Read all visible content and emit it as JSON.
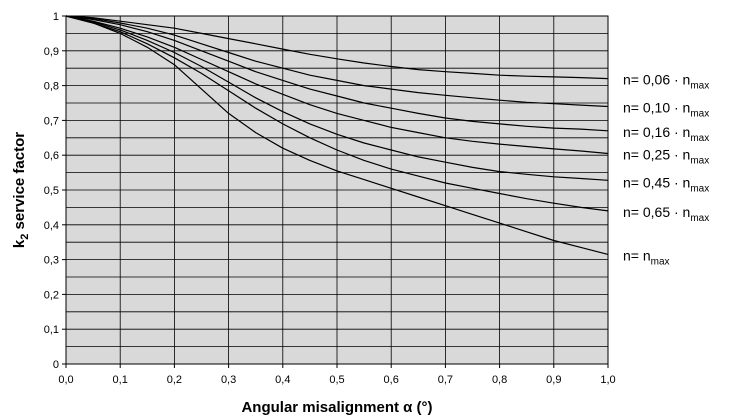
{
  "chart_data": {
    "type": "line",
    "title": "",
    "xlabel": "Angular misalignment α (°)",
    "ylabel": {
      "main": "k",
      "sub": "2",
      "rest": " service factor"
    },
    "xlim": [
      0,
      1.0
    ],
    "ylim": [
      0,
      1.0
    ],
    "x_ticks": [
      "0,0",
      "0,1",
      "0,2",
      "0,3",
      "0,4",
      "0,5",
      "0,6",
      "0,7",
      "0,8",
      "0,9",
      "1,0"
    ],
    "y_ticks": [
      "0",
      "0,1",
      "0,2",
      "0,3",
      "0,4",
      "0,5",
      "0,6",
      "0,7",
      "0,8",
      "0,9",
      "1"
    ],
    "grid": true,
    "plot_background": "#d9d9d9",
    "line_color": "#000000",
    "x": [
      0,
      0.05,
      0.1,
      0.15,
      0.2,
      0.25,
      0.3,
      0.35,
      0.4,
      0.45,
      0.5,
      0.55,
      0.6,
      0.65,
      0.7,
      0.75,
      0.8,
      0.85,
      0.9,
      0.95,
      1.0
    ],
    "series": [
      {
        "label": {
          "prefix": "n= 0,06 · n",
          "sub": "max"
        },
        "values": [
          1.0,
          0.995,
          0.985,
          0.975,
          0.965,
          0.95,
          0.935,
          0.92,
          0.905,
          0.89,
          0.877,
          0.865,
          0.855,
          0.846,
          0.84,
          0.835,
          0.83,
          0.827,
          0.825,
          0.823,
          0.82
        ]
      },
      {
        "label": {
          "prefix": "n= 0,10 · n",
          "sub": "max"
        },
        "values": [
          1.0,
          0.993,
          0.98,
          0.965,
          0.945,
          0.92,
          0.895,
          0.87,
          0.85,
          0.83,
          0.815,
          0.8,
          0.79,
          0.78,
          0.772,
          0.765,
          0.758,
          0.752,
          0.748,
          0.744,
          0.74
        ]
      },
      {
        "label": {
          "prefix": "n= 0,16 · n",
          "sub": "max"
        },
        "values": [
          1.0,
          0.99,
          0.975,
          0.955,
          0.93,
          0.9,
          0.87,
          0.84,
          0.815,
          0.79,
          0.77,
          0.75,
          0.735,
          0.72,
          0.707,
          0.697,
          0.69,
          0.683,
          0.678,
          0.675,
          0.67
        ]
      },
      {
        "label": {
          "prefix": "n= 0,25 · n",
          "sub": "max"
        },
        "values": [
          1.0,
          0.985,
          0.965,
          0.94,
          0.91,
          0.875,
          0.84,
          0.805,
          0.775,
          0.745,
          0.72,
          0.7,
          0.68,
          0.665,
          0.65,
          0.64,
          0.632,
          0.625,
          0.618,
          0.612,
          0.605
        ]
      },
      {
        "label": {
          "prefix": "n= 0,45 · n",
          "sub": "max"
        },
        "values": [
          1.0,
          0.983,
          0.96,
          0.93,
          0.895,
          0.855,
          0.81,
          0.765,
          0.725,
          0.69,
          0.66,
          0.635,
          0.615,
          0.595,
          0.58,
          0.565,
          0.553,
          0.545,
          0.538,
          0.533,
          0.528
        ]
      },
      {
        "label": {
          "prefix": "n= 0,65 · n",
          "sub": "max"
        },
        "values": [
          1.0,
          0.98,
          0.955,
          0.92,
          0.88,
          0.835,
          0.785,
          0.735,
          0.69,
          0.65,
          0.615,
          0.585,
          0.56,
          0.54,
          0.52,
          0.505,
          0.49,
          0.475,
          0.462,
          0.45,
          0.44
        ]
      },
      {
        "label": {
          "prefix": "n= n",
          "sub": "max"
        },
        "values": [
          1.0,
          0.98,
          0.95,
          0.91,
          0.86,
          0.79,
          0.72,
          0.665,
          0.62,
          0.585,
          0.555,
          0.53,
          0.505,
          0.48,
          0.455,
          0.43,
          0.405,
          0.38,
          0.355,
          0.335,
          0.315
        ]
      }
    ]
  }
}
